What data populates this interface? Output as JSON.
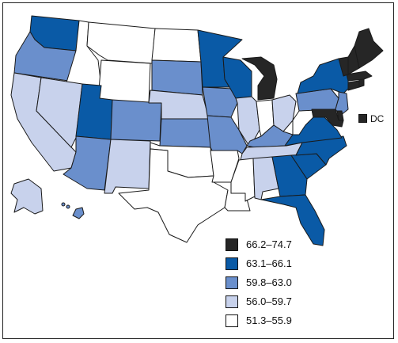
{
  "colors": {
    "bin1": "#262626",
    "bin2": "#0a5aa6",
    "bin3": "#6a8fcc",
    "bin4": "#c8d2ec",
    "bin5": "#ffffff"
  },
  "dc": {
    "label": "DC",
    "bin": "bin1"
  },
  "legend": [
    {
      "label": "66.2–74.7",
      "bin": "bin1"
    },
    {
      "label": "63.1–66.1",
      "bin": "bin2"
    },
    {
      "label": "59.8–63.0",
      "bin": "bin3"
    },
    {
      "label": "56.0–59.7",
      "bin": "bin4"
    },
    {
      "label": "51.3–55.9",
      "bin": "bin5"
    }
  ],
  "states": {
    "WA": "bin2",
    "OR": "bin3",
    "CA": "bin4",
    "ID": "bin5",
    "NV": "bin4",
    "MT": "bin5",
    "WY": "bin5",
    "UT": "bin2",
    "AZ": "bin3",
    "CO": "bin3",
    "NM": "bin4",
    "ND": "bin5",
    "SD": "bin3",
    "NE": "bin4",
    "KS": "bin3",
    "OK": "bin5",
    "TX": "bin5",
    "MN": "bin2",
    "IA": "bin3",
    "MO": "bin3",
    "AR": "bin5",
    "LA": "bin5",
    "WI": "bin2",
    "IL": "bin4",
    "MI": "bin1",
    "IN": "bin5",
    "OH": "bin4",
    "KY": "bin3",
    "TN": "bin4",
    "MS": "bin5",
    "AL": "bin4",
    "GA": "bin2",
    "FL": "bin2",
    "SC": "bin2",
    "NC": "bin2",
    "VA": "bin2",
    "WV": "bin5",
    "PA": "bin3",
    "NY": "bin2",
    "NJ": "bin3",
    "DE": "bin1",
    "MD": "bin1",
    "CT": "bin1",
    "RI": "bin1",
    "MA": "bin1",
    "VT": "bin1",
    "NH": "bin1",
    "ME": "bin1",
    "AK": "bin4",
    "HI": "bin3"
  }
}
